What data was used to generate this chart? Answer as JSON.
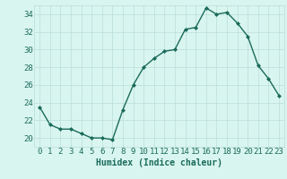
{
  "x": [
    0,
    1,
    2,
    3,
    4,
    5,
    6,
    7,
    8,
    9,
    10,
    11,
    12,
    13,
    14,
    15,
    16,
    17,
    18,
    19,
    20,
    21,
    22,
    23
  ],
  "y": [
    23.5,
    21.5,
    21.0,
    21.0,
    20.5,
    20.0,
    20.0,
    19.8,
    23.2,
    26.0,
    28.0,
    29.0,
    29.8,
    30.0,
    32.3,
    32.5,
    34.7,
    34.0,
    34.2,
    33.0,
    31.5,
    28.2,
    26.7,
    24.8
  ],
  "line_color": "#1a6b5a",
  "marker": "D",
  "marker_size": 2.0,
  "linewidth": 1.0,
  "bg_color": "#d9f5f0",
  "grid_color": "#b8ddd8",
  "tick_color": "#1a6b5a",
  "xlabel": "Humidex (Indice chaleur)",
  "xlim": [
    -0.5,
    23.5
  ],
  "ylim": [
    19,
    35
  ],
  "yticks": [
    20,
    22,
    24,
    26,
    28,
    30,
    32,
    34
  ],
  "xticks": [
    0,
    1,
    2,
    3,
    4,
    5,
    6,
    7,
    8,
    9,
    10,
    11,
    12,
    13,
    14,
    15,
    16,
    17,
    18,
    19,
    20,
    21,
    22,
    23
  ],
  "xlabel_fontsize": 7,
  "tick_fontsize": 6.5
}
